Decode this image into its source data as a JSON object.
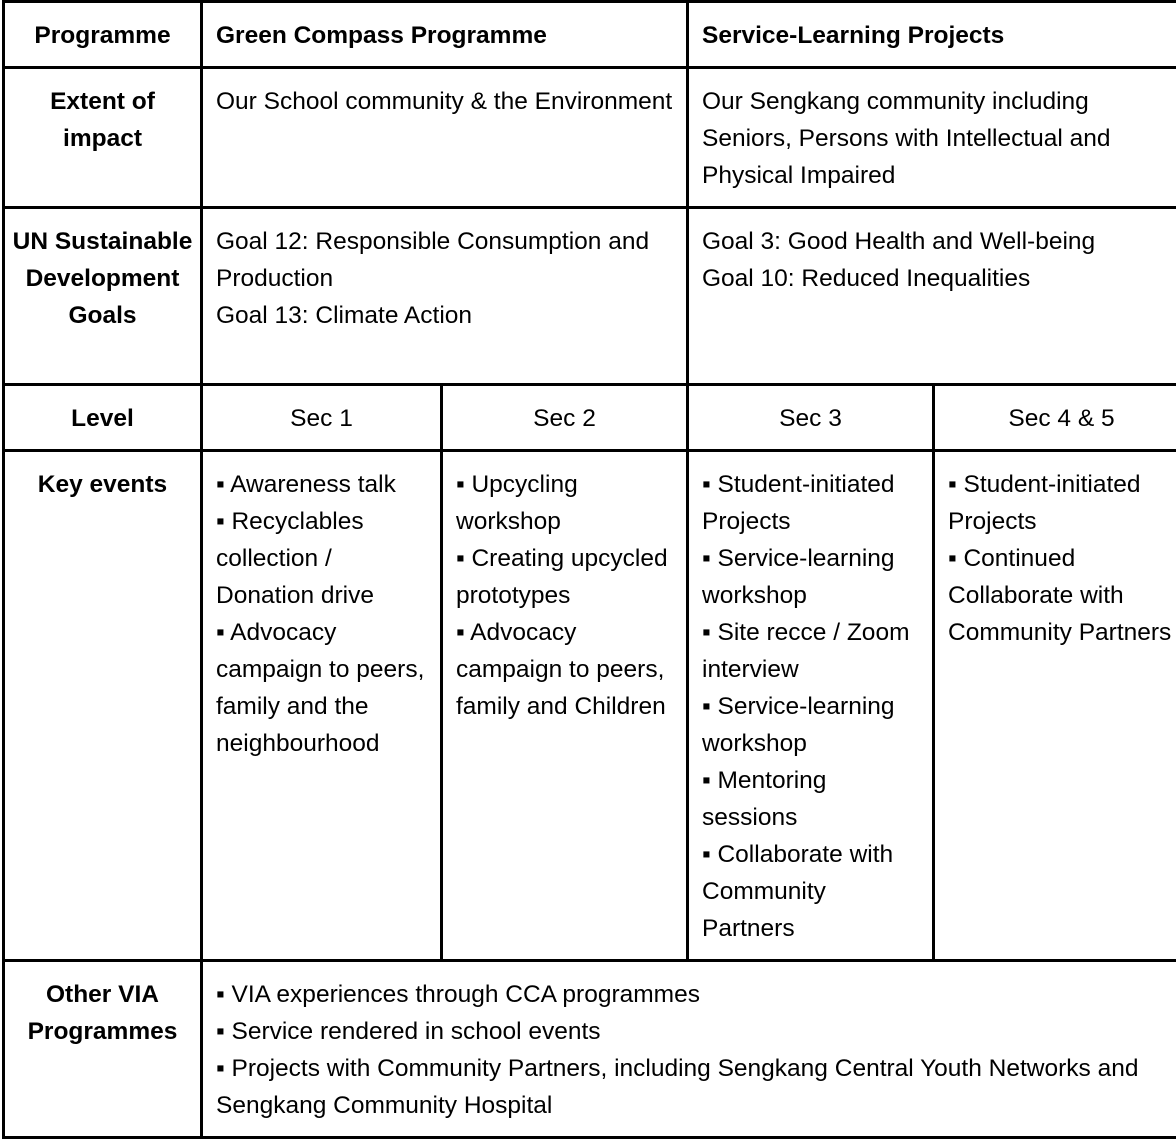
{
  "table": {
    "row_programme": {
      "header": "Programme",
      "col1": "Green Compass Programme",
      "col2": "Service-Learning Projects"
    },
    "row_impact": {
      "header": "Extent of impact",
      "col1": "Our School community & the Environment",
      "col2": "Our Sengkang community including Seniors, Persons with Intellectual and Physical Impaired"
    },
    "row_goals": {
      "header": "UN Sustainable Development Goals",
      "col1": "Goal 12: Responsible Consumption and Production\nGoal 13: Climate Action",
      "col2": "Goal 3: Good Health and Well-being\nGoal 10: Reduced Inequalities"
    },
    "row_level": {
      "header": "Level",
      "levels": [
        "Sec 1",
        "Sec 2",
        "Sec 3",
        "Sec 4 & 5"
      ]
    },
    "row_events": {
      "header": "Key events",
      "events": [
        "▪ Awareness talk\n▪ Recyclables collection / Donation drive\n▪ Advocacy campaign to peers, family and the neighbourhood",
        "▪ Upcycling workshop\n▪ Creating upcycled prototypes\n▪ Advocacy campaign to peers, family and Children",
        "▪ Student-initiated Projects\n▪ Service-learning workshop\n▪ Site recce / Zoom interview\n▪ Service-learning workshop\n▪ Mentoring sessions\n▪ Collaborate with Community Partners",
        "▪ Student-initiated Projects\n▪ Continued Collaborate with Community Partners"
      ]
    },
    "row_other": {
      "header": "Other VIA Programmes",
      "text": "▪ VIA experiences through CCA programmes\n▪ Service rendered in school events\n▪ Projects with Community Partners, including Sengkang Central Youth Networks and Sengkang Community Hospital"
    }
  }
}
